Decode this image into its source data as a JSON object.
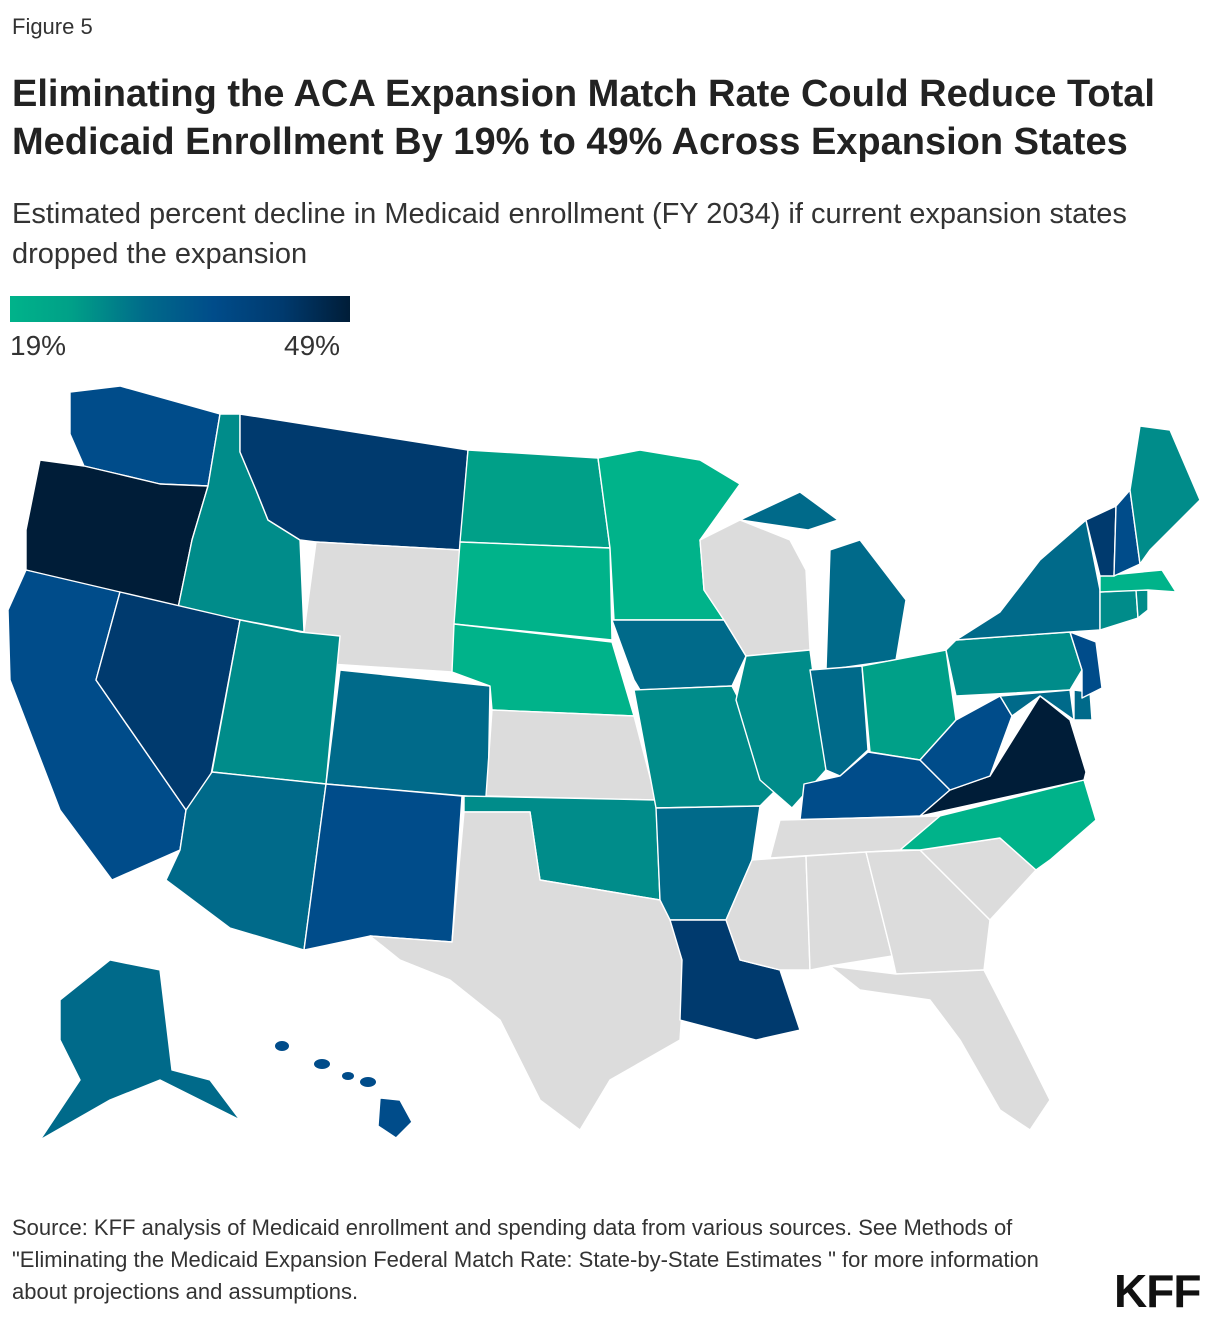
{
  "figure_label": "Figure 5",
  "title": "Eliminating the ACA Expansion Match Rate Could Reduce Total Medicaid Enrollment By 19% to 49% Across Expansion States",
  "subtitle": "Estimated percent decline in Medicaid enrollment (FY 2034) if current expansion states dropped the expansion",
  "legend": {
    "min_label": "19%",
    "max_label": "49%"
  },
  "colors": {
    "scale": [
      "#00b38a",
      "#00a088",
      "#008c8a",
      "#006a8a",
      "#004c8a",
      "#003a6e",
      "#001d38"
    ],
    "no_data": "#dcdcdc",
    "border": "#ffffff"
  },
  "map_data": {
    "metric": "percent decline in Medicaid enrollment (FY 2034)",
    "scale_range": [
      19,
      49
    ],
    "non_expansion_states": [
      "WY",
      "WI",
      "KS",
      "TX",
      "TN",
      "MS",
      "AL",
      "GA",
      "SC",
      "FL"
    ]
  },
  "source": "Source: KFF analysis of Medicaid enrollment and spending data from various sources. See Methods of \"Eliminating the Medicaid Expansion Federal Match Rate: State-by-State Estimates \" for more information about projections and assumptions.",
  "logo": "KFF"
}
